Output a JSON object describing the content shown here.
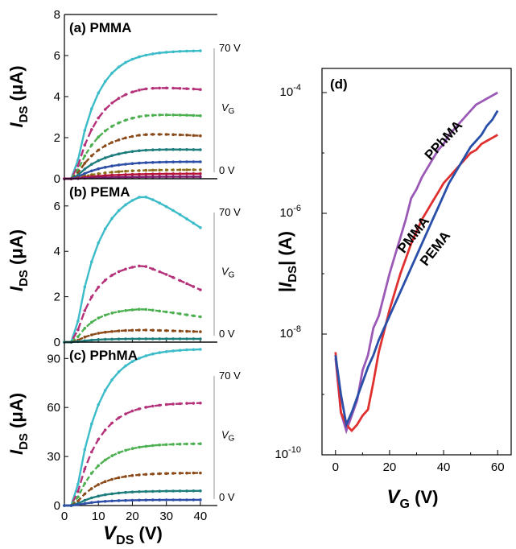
{
  "chart_data": [
    {
      "id": "a",
      "type": "line",
      "panel_label": "(a) PMMA",
      "ylabel": "I_DS (μA)",
      "ylabel_main": "I",
      "ylabel_sub": "DS",
      "ylabel_unit": " (μA)",
      "xlim": [
        0,
        45
      ],
      "ylim": [
        0,
        8
      ],
      "yticks": [
        0,
        2,
        4,
        6,
        8
      ],
      "vg_top": "70 V",
      "vg_bottom": "0 V",
      "vg_main": "V",
      "vg_sub": "G",
      "x": [
        0,
        2,
        4,
        6,
        8,
        10,
        12,
        14,
        16,
        18,
        20,
        22,
        24,
        26,
        28,
        30,
        32,
        34,
        36,
        38,
        40
      ],
      "series": [
        {
          "color": "#3cbcc8",
          "dash": "solid",
          "sat": 6.25,
          "k": 0.45,
          "fall": 0
        },
        {
          "color": "#b5327a",
          "dash": "9,4",
          "sat": 4.6,
          "k": 0.42,
          "fall": 0.06
        },
        {
          "color": "#4caf50",
          "dash": "6,3",
          "sat": 3.25,
          "k": 0.4,
          "fall": 0.06
        },
        {
          "color": "#8b4a1a",
          "dash": "6,3",
          "sat": 2.3,
          "k": 0.38,
          "fall": 0.1
        },
        {
          "color": "#1e7d7d",
          "dash": "solid",
          "sat": 1.5,
          "k": 0.36,
          "fall": 0.06
        },
        {
          "color": "#2e4fa8",
          "dash": "solid",
          "sat": 0.85,
          "k": 0.34,
          "fall": 0.02
        },
        {
          "color": "#8b6d1a",
          "dash": "4,3",
          "sat": 0.45,
          "k": 0.32,
          "fall": 0.02
        },
        {
          "color": "#b8133a",
          "dash": "solid",
          "sat": 0.25,
          "k": 0.3,
          "fall": 0.0
        },
        {
          "color": "#7a1a6a",
          "dash": "solid",
          "sat": 0.1,
          "k": 0.3,
          "fall": 0.0
        }
      ]
    },
    {
      "id": "b",
      "type": "line",
      "panel_label": "(b) PEMA",
      "ylabel": "I_DS (μA)",
      "ylabel_main": "I",
      "ylabel_sub": "DS",
      "ylabel_unit": " (μA)",
      "xlim": [
        0,
        45
      ],
      "ylim": [
        0,
        7.2
      ],
      "yticks": [
        0,
        2,
        4,
        6
      ],
      "vg_top": "70 V",
      "vg_bottom": "0 V",
      "vg_main": "V",
      "vg_sub": "G",
      "x": [
        0,
        2,
        4,
        6,
        8,
        10,
        12,
        14,
        16,
        18,
        20,
        22,
        24,
        26,
        28,
        30,
        32,
        34,
        36,
        38,
        40
      ],
      "series": [
        {
          "color": "#3cbcc8",
          "dash": "solid",
          "sat": 6.8,
          "k": 0.42,
          "fall": 0.3
        },
        {
          "color": "#b5327a",
          "dash": "9,4",
          "sat": 3.5,
          "k": 0.48,
          "fall": 0.4
        },
        {
          "color": "#4caf50",
          "dash": "6,3",
          "sat": 1.5,
          "k": 0.5,
          "fall": 0.3
        },
        {
          "color": "#8b4a1a",
          "dash": "6,3",
          "sat": 0.55,
          "k": 0.5,
          "fall": 0.2
        },
        {
          "color": "#1e7d7d",
          "dash": "solid",
          "sat": 0.15,
          "k": 0.5,
          "fall": 0.05
        }
      ]
    },
    {
      "id": "c",
      "type": "line",
      "panel_label": "(c) PPhMA",
      "ylabel": "I_DS (μA)",
      "ylabel_main": "I",
      "ylabel_sub": "DS",
      "ylabel_unit": " (μA)",
      "xlabel": "V_DS (V)",
      "xlabel_main": "V",
      "xlabel_sub": "DS",
      "xlabel_unit": " (V)",
      "xlim": [
        0,
        45
      ],
      "ylim": [
        0,
        100
      ],
      "xticks": [
        0,
        10,
        20,
        30,
        40
      ],
      "yticks": [
        0,
        30,
        60,
        90
      ],
      "vg_top": "70 V",
      "vg_bottom": "0 V",
      "vg_main": "V",
      "vg_sub": "G",
      "x": [
        0,
        2,
        4,
        6,
        8,
        10,
        12,
        14,
        16,
        18,
        20,
        22,
        24,
        26,
        28,
        30,
        32,
        34,
        36,
        38,
        40
      ],
      "series": [
        {
          "color": "#3cbcc8",
          "dash": "solid",
          "sat": 96,
          "k": 0.42,
          "fall": 0
        },
        {
          "color": "#b5327a",
          "dash": "9,4",
          "sat": 63,
          "k": 0.42,
          "fall": 0
        },
        {
          "color": "#4caf50",
          "dash": "6,3",
          "sat": 38,
          "k": 0.42,
          "fall": 0
        },
        {
          "color": "#8b4a1a",
          "dash": "6,3",
          "sat": 20,
          "k": 0.42,
          "fall": 0
        },
        {
          "color": "#1e7d7d",
          "dash": "solid",
          "sat": 9,
          "k": 0.42,
          "fall": 0
        },
        {
          "color": "#2e4fa8",
          "dash": "solid",
          "sat": 3.5,
          "k": 0.42,
          "fall": 0
        }
      ]
    },
    {
      "id": "d",
      "type": "line",
      "scale": "log",
      "panel_label": "(d)",
      "xlabel": "V_G (V)",
      "xlabel_main": "V",
      "xlabel_sub": "G",
      "xlabel_unit": " (V)",
      "ylabel": "|I_DS| (A)",
      "ylabel_pre": "|",
      "ylabel_main": "I",
      "ylabel_sub": "DS",
      "ylabel_unit": "| (A)",
      "xlim": [
        -5,
        65
      ],
      "ylim_exp": [
        -10,
        -3.6
      ],
      "xticks": [
        0,
        20,
        40,
        60
      ],
      "yticks": [
        "10",
        "10",
        "10",
        "10"
      ],
      "ytick_exps": [
        "-10",
        "-8",
        "-6",
        "-4"
      ],
      "ytick_vals": [
        -10,
        -8,
        -6,
        -4
      ],
      "series": [
        {
          "name": "PPhMA",
          "color": "#9b59b6",
          "x": [
            0,
            2,
            4,
            6,
            8,
            10,
            12,
            14,
            16,
            18,
            20,
            22,
            24,
            26,
            28,
            30,
            32,
            34,
            36,
            38,
            40,
            42,
            44,
            46,
            48,
            50,
            52,
            54,
            56,
            58,
            60
          ],
          "y": [
            -8.4,
            -9.3,
            -9.6,
            -9.35,
            -9.1,
            -8.6,
            -8.35,
            -7.9,
            -7.7,
            -7.35,
            -7.0,
            -6.7,
            -6.4,
            -6.1,
            -5.75,
            -5.6,
            -5.4,
            -5.25,
            -5.1,
            -4.95,
            -4.85,
            -4.7,
            -4.6,
            -4.5,
            -4.4,
            -4.3,
            -4.2,
            -4.15,
            -4.1,
            -4.05,
            -4.0
          ]
        },
        {
          "name": "PMMA",
          "color": "#e03030",
          "x": [
            0,
            2,
            4,
            6,
            8,
            10,
            12,
            14,
            16,
            18,
            20,
            22,
            24,
            26,
            28,
            30,
            32,
            34,
            36,
            38,
            40,
            42,
            44,
            46,
            48,
            50,
            52,
            54,
            56,
            58,
            60
          ],
          "y": [
            -8.3,
            -9.3,
            -9.5,
            -9.6,
            -9.5,
            -9.35,
            -9.25,
            -8.8,
            -8.3,
            -7.95,
            -7.6,
            -7.3,
            -7.0,
            -6.75,
            -6.5,
            -6.3,
            -6.1,
            -5.95,
            -5.8,
            -5.65,
            -5.5,
            -5.4,
            -5.3,
            -5.2,
            -5.1,
            -5.0,
            -4.95,
            -4.85,
            -4.8,
            -4.75,
            -4.7
          ]
        },
        {
          "name": "PEMA",
          "color": "#2a4fa8",
          "x": [
            0,
            2,
            4,
            6,
            8,
            10,
            12,
            14,
            16,
            18,
            20,
            22,
            24,
            26,
            28,
            30,
            32,
            34,
            36,
            38,
            40,
            42,
            44,
            46,
            48,
            50,
            52,
            54,
            56,
            58,
            60
          ],
          "y": [
            -8.35,
            -9.0,
            -9.5,
            -9.3,
            -9.05,
            -8.8,
            -8.55,
            -8.35,
            -8.1,
            -7.9,
            -7.7,
            -7.5,
            -7.3,
            -7.1,
            -6.9,
            -6.7,
            -6.5,
            -6.3,
            -6.1,
            -5.9,
            -5.7,
            -5.5,
            -5.35,
            -5.2,
            -5.05,
            -4.9,
            -4.8,
            -4.7,
            -4.55,
            -4.45,
            -4.3
          ]
        }
      ]
    }
  ]
}
